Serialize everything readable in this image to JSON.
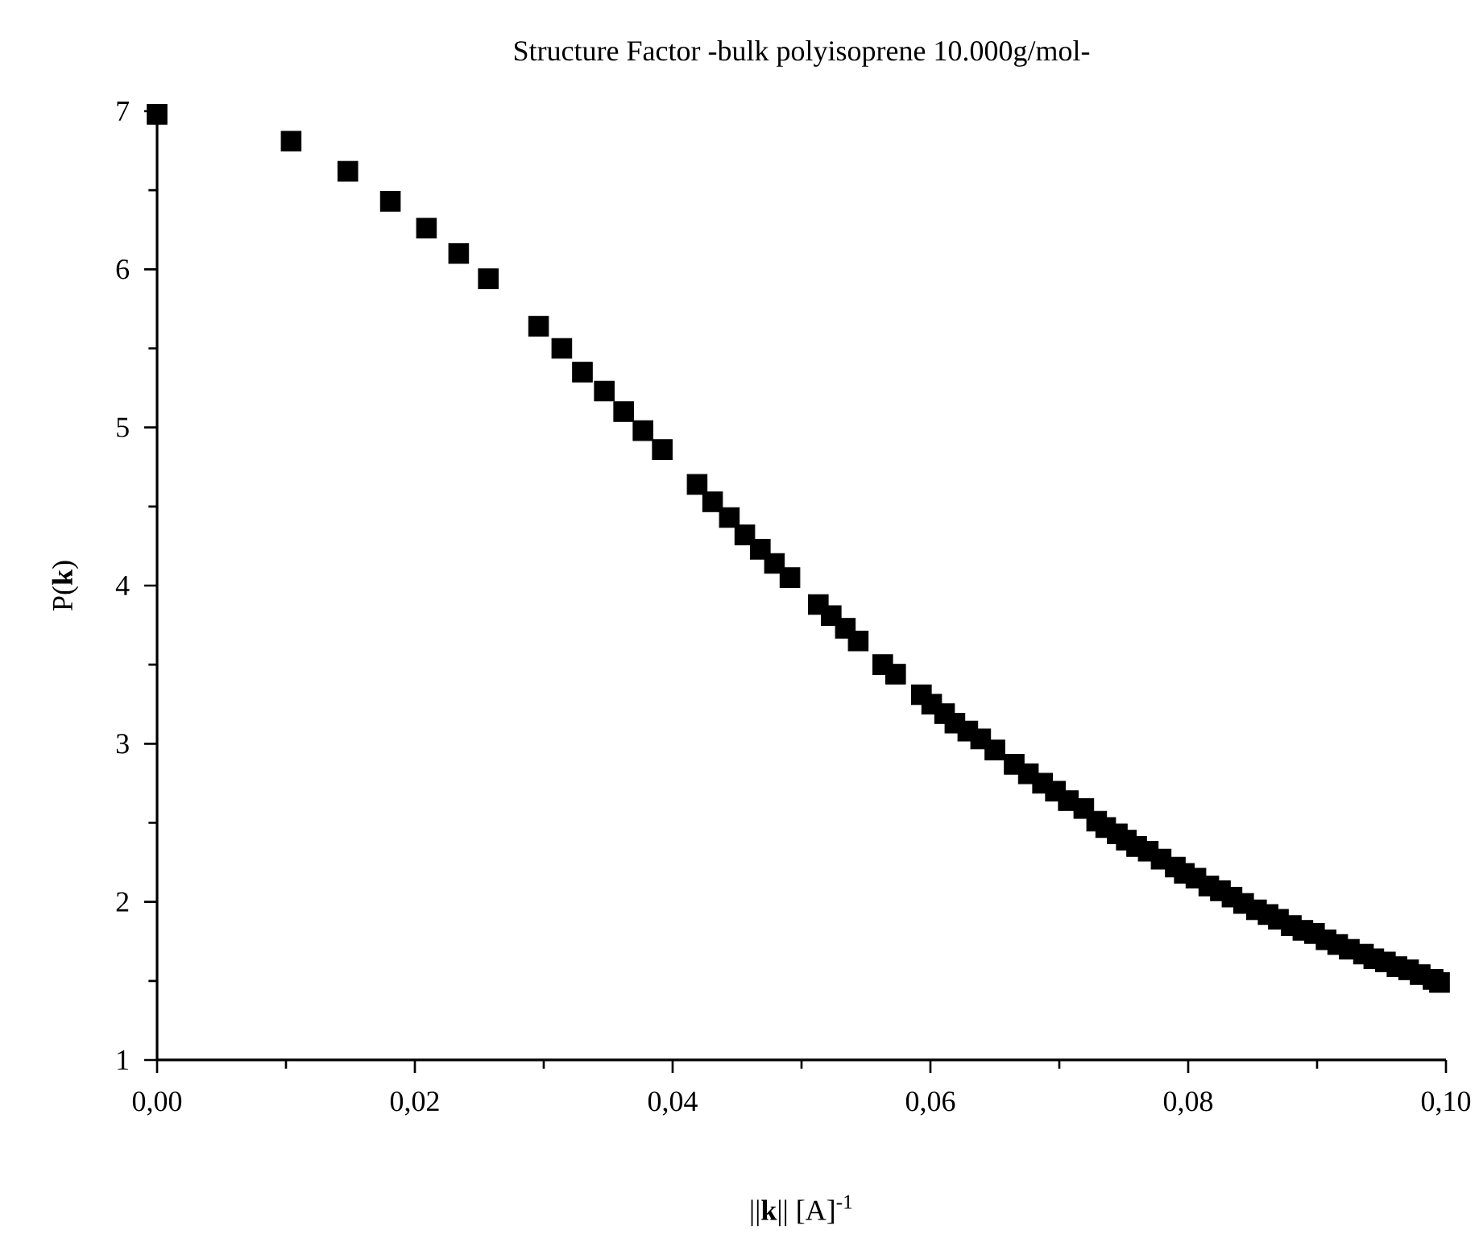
{
  "chart_data": {
    "type": "scatter",
    "title": "Structure Factor -bulk polyisoprene 10.000g/mol-",
    "xlabel": "||**k**|| [A]$^{-1}$",
    "ylabel": "P(**k**)",
    "x": [
      0,
      0.0104,
      0.0148,
      0.0181,
      0.0209,
      0.0234,
      0.0257,
      0.0296,
      0.0314,
      0.033,
      0.0347,
      0.0362,
      0.0377,
      0.0392,
      0.0419,
      0.0431,
      0.0444,
      0.0456,
      0.0468,
      0.0479,
      0.0491,
      0.0513,
      0.0523,
      0.0534,
      0.0544,
      0.0563,
      0.0573,
      0.0593,
      0.0601,
      0.0611,
      0.0619,
      0.0629,
      0.0639,
      0.065,
      0.0665,
      0.0676,
      0.0687,
      0.0697,
      0.0707,
      0.0719,
      0.0729,
      0.0736,
      0.0745,
      0.0752,
      0.076,
      0.0769,
      0.0779,
      0.079,
      0.0797,
      0.0806,
      0.0816,
      0.0825,
      0.0834,
      0.0843,
      0.0853,
      0.0862,
      0.087,
      0.088,
      0.0889,
      0.0898,
      0.0907,
      0.0916,
      0.0925,
      0.0936,
      0.0944,
      0.0953,
      0.0962,
      0.0971,
      0.098,
      0.099,
      0.0995
    ],
    "values": [
      6.98,
      6.81,
      6.62,
      6.43,
      6.26,
      6.1,
      5.94,
      5.64,
      5.5,
      5.35,
      5.23,
      5.1,
      4.98,
      4.86,
      4.64,
      4.53,
      4.43,
      4.32,
      4.23,
      4.14,
      4.05,
      3.88,
      3.81,
      3.73,
      3.65,
      3.5,
      3.44,
      3.31,
      3.25,
      3.19,
      3.13,
      3.08,
      3.03,
      2.96,
      2.87,
      2.81,
      2.75,
      2.7,
      2.64,
      2.59,
      2.51,
      2.47,
      2.43,
      2.39,
      2.35,
      2.32,
      2.27,
      2.22,
      2.18,
      2.15,
      2.1,
      2.07,
      2.03,
      1.99,
      1.95,
      1.92,
      1.89,
      1.85,
      1.82,
      1.8,
      1.76,
      1.73,
      1.7,
      1.67,
      1.64,
      1.62,
      1.59,
      1.57,
      1.54,
      1.51,
      1.49
    ],
    "color": "#000000",
    "marker": "square",
    "xlim": [
      0,
      0.1
    ],
    "xticks": [
      {
        "value": 0,
        "label": "0,00"
      },
      {
        "value": 0.02,
        "label": "0,02"
      },
      {
        "value": 0.04,
        "label": "0,04"
      },
      {
        "value": 0.06,
        "label": "0,06"
      },
      {
        "value": 0.08,
        "label": "0,08"
      },
      {
        "value": 0.1,
        "label": "0,10"
      }
    ],
    "ylim": [
      1,
      7
    ],
    "yticks": [
      1,
      2,
      3,
      4,
      5,
      6,
      7
    ]
  }
}
